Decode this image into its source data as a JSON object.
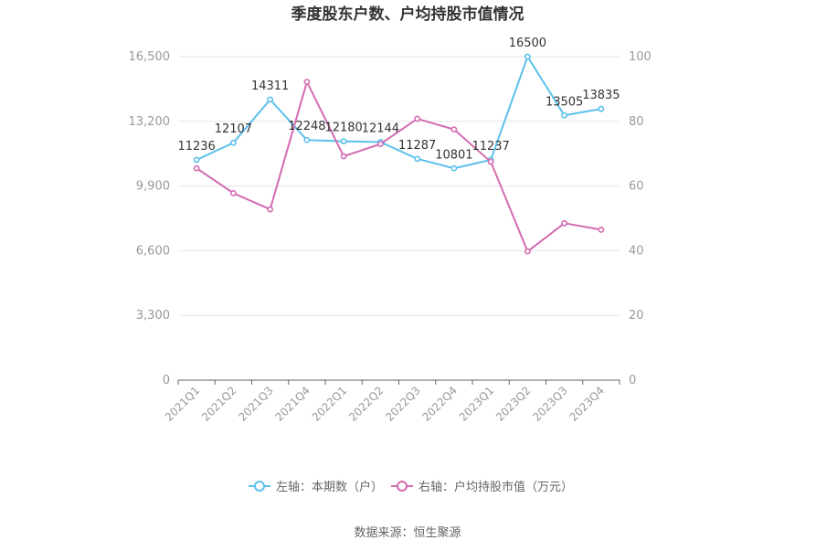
{
  "chart_data": {
    "type": "line",
    "title": "季度股东户数、户均持股市值情况",
    "categories": [
      "2021Q1",
      "2021Q2",
      "2021Q3",
      "2021Q4",
      "2022Q1",
      "2022Q2",
      "2022Q3",
      "2022Q4",
      "2023Q1",
      "2023Q2",
      "2023Q3",
      "2023Q4"
    ],
    "series": [
      {
        "name": "左轴：本期数（户）",
        "axis": "left",
        "color": "#5bc0eb",
        "values": [
          11236,
          12107,
          14311,
          12248,
          12180,
          12144,
          11287,
          10801,
          11237,
          16500,
          13505,
          13835
        ],
        "labels": [
          "11236",
          "12107",
          "14311",
          "12248",
          "12180",
          "12144",
          "11287",
          "10801",
          "11237",
          "16500",
          "13505",
          "13835"
        ]
      },
      {
        "name": "右轴：户均持股市值（万元）",
        "axis": "right",
        "color": "#d36bb0",
        "values": [
          65.5,
          57.8,
          52.8,
          92.2,
          69.2,
          73.0,
          80.8,
          77.5,
          67.5,
          39.8,
          48.5,
          46.5
        ]
      }
    ],
    "left_axis": {
      "ylim": [
        0,
        16500
      ],
      "ticks": [
        "0",
        "3,300",
        "6,600",
        "9,900",
        "13,200",
        "16,500"
      ],
      "tick_values": [
        0,
        3300,
        6600,
        9900,
        13200,
        16500
      ]
    },
    "right_axis": {
      "ylim": [
        0,
        100
      ],
      "ticks": [
        "0",
        "20",
        "40",
        "60",
        "80",
        "100"
      ],
      "tick_values": [
        0,
        20,
        40,
        60,
        80,
        100
      ]
    },
    "grid": true,
    "legend_position": "bottom-center"
  },
  "source": "数据来源：恒生聚源"
}
